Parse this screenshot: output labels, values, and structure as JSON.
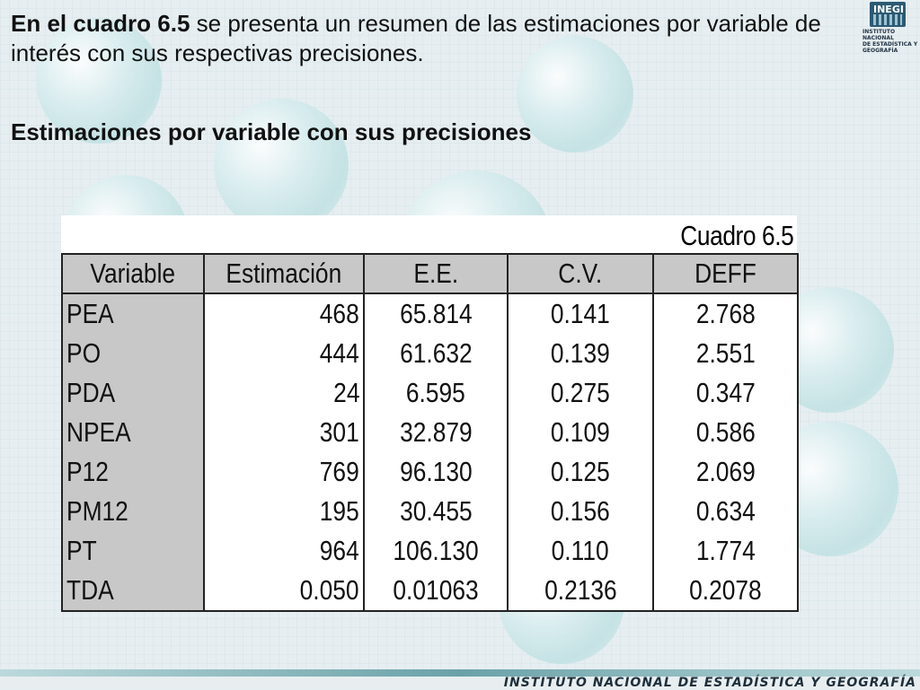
{
  "intro": {
    "bold": "En el cuadro 6.5",
    "rest": " se presenta un resumen de las estimaciones por variable de interés con  sus respectivas precisiones."
  },
  "subtitle": "Estimaciones por variable con sus precisiones",
  "logo": {
    "mark": "INEGI",
    "line1": "INSTITUTO NACIONAL",
    "line2": "DE ESTADÍSTICA Y GEOGRAFÍA"
  },
  "table": {
    "caption": "Cuadro 6.5",
    "headers": [
      "Variable",
      "Estimación",
      "E.E.",
      "C.V.",
      "DEFF"
    ],
    "rows": [
      {
        "variable": "PEA",
        "estimacion": "468",
        "ee": "65.814",
        "cv": "0.141",
        "deff": "2.768"
      },
      {
        "variable": "PO",
        "estimacion": "444",
        "ee": "61.632",
        "cv": "0.139",
        "deff": "2.551"
      },
      {
        "variable": "PDA",
        "estimacion": "24",
        "ee": "6.595",
        "cv": "0.275",
        "deff": "0.347"
      },
      {
        "variable": "NPEA",
        "estimacion": "301",
        "ee": "32.879",
        "cv": "0.109",
        "deff": "0.586"
      },
      {
        "variable": "P12",
        "estimacion": "769",
        "ee": "96.130",
        "cv": "0.125",
        "deff": "2.069"
      },
      {
        "variable": "PM12",
        "estimacion": "195",
        "ee": "30.455",
        "cv": "0.156",
        "deff": "0.634"
      },
      {
        "variable": "PT",
        "estimacion": "964",
        "ee": "106.130",
        "cv": "0.110",
        "deff": "1.774"
      },
      {
        "variable": "TDA",
        "estimacion": "0.050",
        "ee": "0.01063",
        "cv": "0.2136",
        "deff": "0.2078"
      }
    ]
  },
  "footer": "INSTITUTO NACIONAL DE ESTADÍSTICA Y GEOGRAFÍA"
}
